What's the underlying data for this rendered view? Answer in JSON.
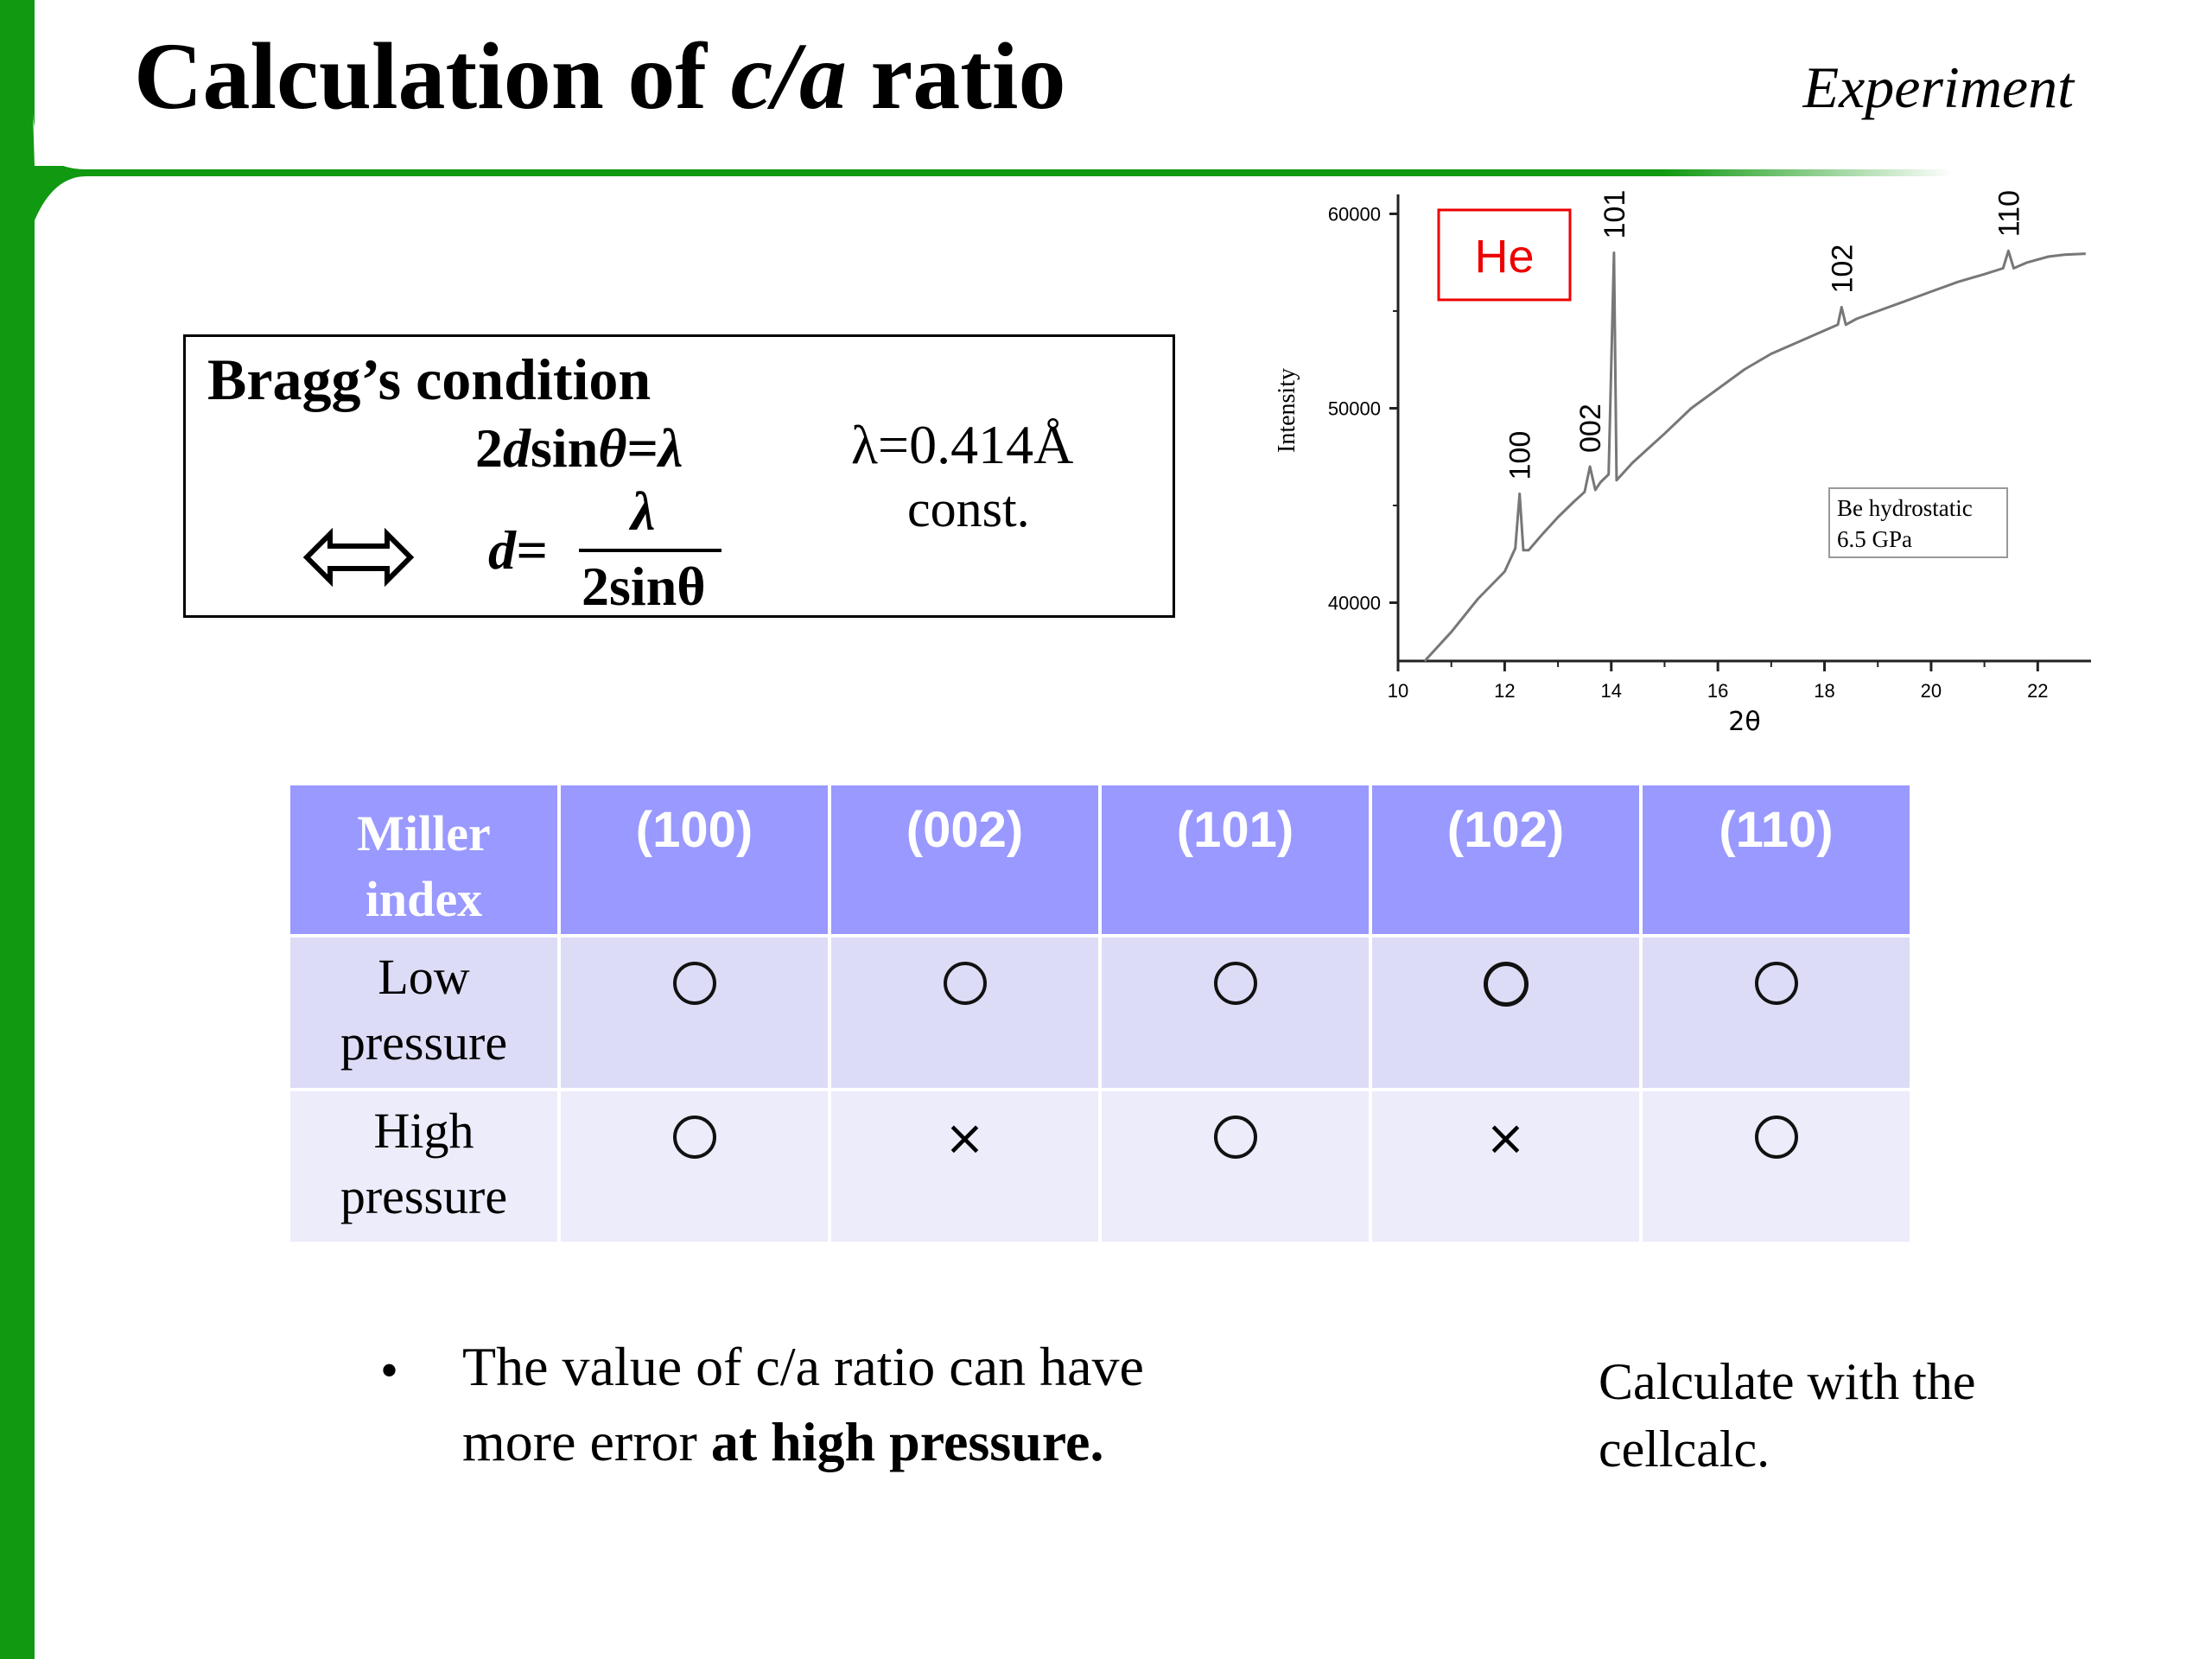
{
  "header": {
    "title_prefix": "Calculation of ",
    "title_italic": "c/a",
    "title_suffix": " ratio",
    "subtitle": "Experiment",
    "colors": {
      "accent_green": "#119911"
    }
  },
  "bragg": {
    "heading": "Bragg’s condition",
    "equation_lhs_num": "2",
    "equation_lhs_d": "d",
    "equation_lhs_rest": "sin",
    "equation_theta": "θ",
    "equation_eq": "=",
    "equation_lambda": "λ",
    "wavelength": "λ=0.414Å",
    "const": "const.",
    "equivalence_icon": "double-arrow-icon",
    "d_label": "d=",
    "frac_numerator": "λ",
    "frac_denominator": "2sinθ"
  },
  "chart_data": {
    "type": "line",
    "xlabel": "2θ",
    "ylabel": "Intensity",
    "xlim": [
      10,
      23
    ],
    "ylim": [
      37000,
      61000
    ],
    "x_ticks": [
      "10",
      "12",
      "14",
      "16",
      "18",
      "20",
      "22"
    ],
    "y_ticks": [
      "40000",
      "50000",
      "60000"
    ],
    "series": [
      {
        "x": [
          10.5,
          11.0,
          11.5,
          12.0,
          12.2,
          12.28,
          12.35,
          12.45,
          12.7,
          13.0,
          13.3,
          13.5,
          13.6,
          13.7,
          13.8,
          13.95,
          14.05,
          14.1,
          14.2,
          14.4,
          15.0,
          15.5,
          16.0,
          16.5,
          17.0,
          17.5,
          18.0,
          18.25,
          18.32,
          18.4,
          18.6,
          19.0,
          19.5,
          20.0,
          20.5,
          21.0,
          21.35,
          21.45,
          21.55,
          21.8,
          22.2,
          22.5,
          22.9
        ],
        "y": [
          37000,
          38500,
          40200,
          41600,
          42800,
          45600,
          42700,
          42700,
          43500,
          44400,
          45200,
          45700,
          47000,
          45800,
          46200,
          46600,
          58000,
          46300,
          46600,
          47200,
          48700,
          50000,
          51000,
          52000,
          52800,
          53400,
          54000,
          54300,
          55200,
          54300,
          54600,
          55000,
          55500,
          56000,
          56500,
          56900,
          57200,
          58100,
          57200,
          57500,
          57800,
          57900,
          57950
        ]
      }
    ],
    "peak_labels": [
      {
        "label": "100",
        "x": 12.28
      },
      {
        "label": "002",
        "x": 13.6
      },
      {
        "label": "101",
        "x": 14.05
      },
      {
        "label": "102",
        "x": 18.32
      },
      {
        "label": "110",
        "x": 21.45
      }
    ],
    "gas_label": "He",
    "gas_label_color": "#ee0000",
    "annotation_line1": "Be hydrostatic",
    "annotation_line2": "6.5 GPa"
  },
  "table": {
    "header_first_line1": "Miller",
    "header_first_line2": "index",
    "columns": [
      "(100)",
      "(002)",
      "(101)",
      "(102)",
      "(110)"
    ],
    "rows": [
      {
        "label_line1": "Low",
        "label_line2": "pressure",
        "marks": [
          "circle",
          "circle",
          "circle",
          "circle",
          "circle"
        ]
      },
      {
        "label_line1": "High",
        "label_line2": "pressure",
        "marks": [
          "circle",
          "×",
          "circle",
          "×",
          "circle"
        ]
      }
    ],
    "colors": {
      "header_bg": "#9999ff",
      "low_row_bg": "#dcdcf7",
      "high_row_bg": "#ececfb"
    }
  },
  "notes": {
    "bullet": "•",
    "bullet_text_normal": "The value of c/a ratio can have more error ",
    "bullet_text_bold": "at high pressure.",
    "calc_note": "Calculate with the cellcalc."
  }
}
